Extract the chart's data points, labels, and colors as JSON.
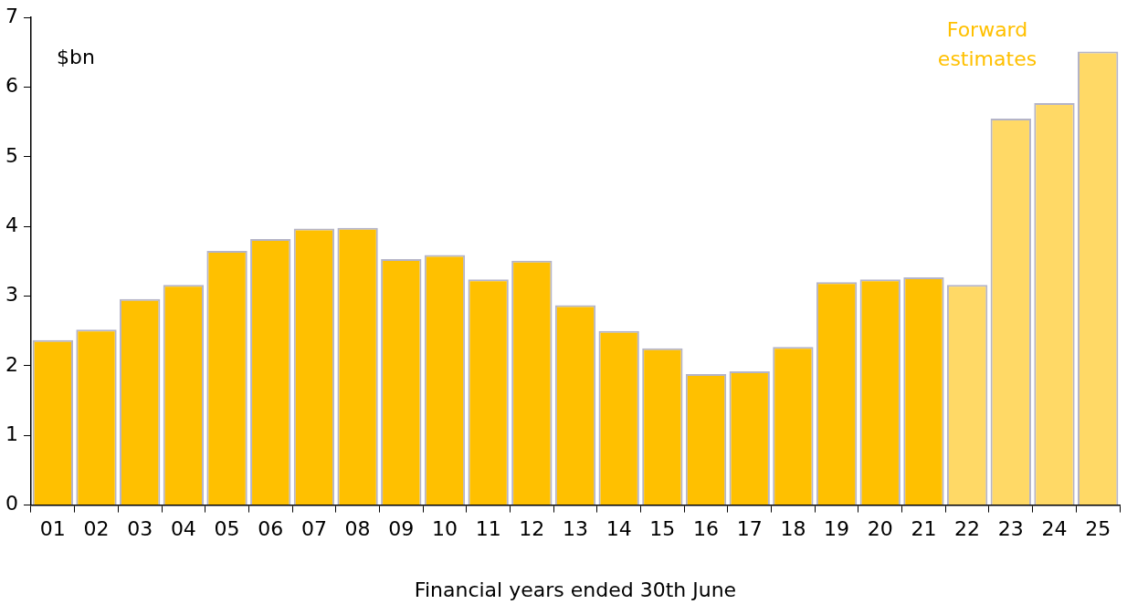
{
  "chart_data": {
    "type": "bar",
    "categories": [
      "01",
      "02",
      "03",
      "04",
      "05",
      "06",
      "07",
      "08",
      "09",
      "10",
      "11",
      "12",
      "13",
      "14",
      "15",
      "16",
      "17",
      "18",
      "19",
      "20",
      "21",
      "22",
      "23",
      "24",
      "25"
    ],
    "values": [
      2.37,
      2.52,
      2.96,
      3.16,
      3.65,
      3.82,
      3.97,
      3.98,
      3.53,
      3.59,
      3.24,
      3.51,
      2.87,
      2.5,
      2.25,
      1.88,
      1.92,
      2.27,
      3.2,
      3.24,
      3.27,
      3.16,
      5.55,
      5.77,
      6.51
    ],
    "colors": [
      "#ffc000",
      "#ffc000",
      "#ffc000",
      "#ffc000",
      "#ffc000",
      "#ffc000",
      "#ffc000",
      "#ffc000",
      "#ffc000",
      "#ffc000",
      "#ffc000",
      "#ffc000",
      "#ffc000",
      "#ffc000",
      "#ffc000",
      "#ffc000",
      "#ffc000",
      "#ffc000",
      "#ffc000",
      "#ffc000",
      "#ffc000",
      "#ffd966",
      "#ffd966",
      "#ffd966",
      "#ffd966"
    ],
    "ylim": [
      0,
      7
    ],
    "yticks": [
      0,
      1,
      2,
      3,
      4,
      5,
      6,
      7
    ],
    "xlabel": "Financial years ended 30th June",
    "ylabel": "$bn",
    "annotations": [
      "Forward\nestimates"
    ],
    "grid": false,
    "legend": false
  }
}
